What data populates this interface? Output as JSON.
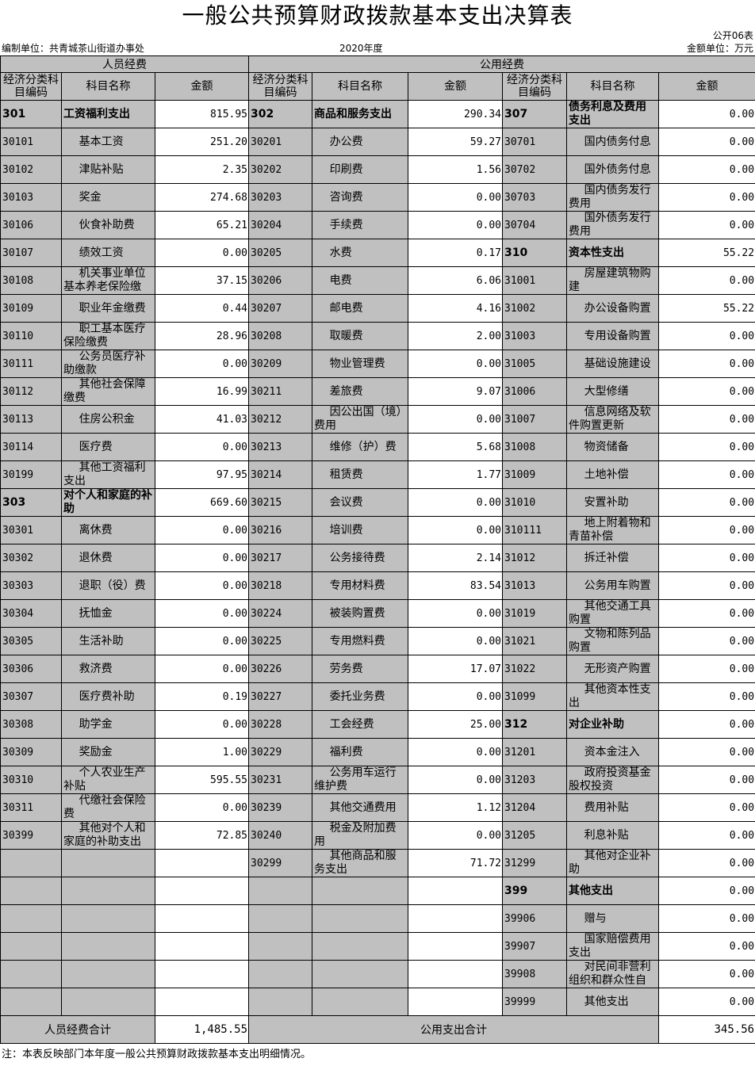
{
  "title": "一般公共预算财政拨款基本支出决算表",
  "form_no": "公开06表",
  "unit_label": "编制单位：共青城茶山街道办事处",
  "year": "2020年度",
  "currency": "金额单位：万元",
  "groups": {
    "personnel": "人员经费",
    "public": "公用经费"
  },
  "headers": {
    "code_a": "经济分类科目编码",
    "code_b": "经济分类科目编码",
    "name": "科目名称",
    "amount": "金额"
  },
  "rows": [
    [
      [
        "301",
        "工资福利支出",
        "815.95",
        1
      ],
      [
        "302",
        "商品和服务支出",
        "290.34",
        1
      ],
      [
        "307",
        "债务利息及费用支出",
        "0.00",
        1
      ]
    ],
    [
      [
        "30101",
        "基本工资",
        "251.20"
      ],
      [
        "30201",
        "办公费",
        "59.27"
      ],
      [
        "30701",
        "国内债务付息",
        "0.00"
      ]
    ],
    [
      [
        "30102",
        "津贴补贴",
        "2.35"
      ],
      [
        "30202",
        "印刷费",
        "1.56"
      ],
      [
        "30702",
        "国外债务付息",
        "0.00"
      ]
    ],
    [
      [
        "30103",
        "奖金",
        "274.68"
      ],
      [
        "30203",
        "咨询费",
        "0.00"
      ],
      [
        "30703",
        "国内债务发行费用",
        "0.00"
      ]
    ],
    [
      [
        "30106",
        "伙食补助费",
        "65.21"
      ],
      [
        "30204",
        "手续费",
        "0.00"
      ],
      [
        "30704",
        "国外债务发行费用",
        "0.00"
      ]
    ],
    [
      [
        "30107",
        "绩效工资",
        "0.00"
      ],
      [
        "30205",
        "水费",
        "0.17"
      ],
      [
        "310",
        "资本性支出",
        "55.22",
        1
      ]
    ],
    [
      [
        "30108",
        "机关事业单位基本养老保险缴",
        "37.15"
      ],
      [
        "30206",
        "电费",
        "6.06"
      ],
      [
        "31001",
        "房屋建筑物购建",
        "0.00"
      ]
    ],
    [
      [
        "30109",
        "职业年金缴费",
        "0.44"
      ],
      [
        "30207",
        "邮电费",
        "4.16"
      ],
      [
        "31002",
        "办公设备购置",
        "55.22"
      ]
    ],
    [
      [
        "30110",
        "职工基本医疗保险缴费",
        "28.96"
      ],
      [
        "30208",
        "取暖费",
        "2.00"
      ],
      [
        "31003",
        "专用设备购置",
        "0.00"
      ]
    ],
    [
      [
        "30111",
        "公务员医疗补助缴款",
        "0.00"
      ],
      [
        "30209",
        "物业管理费",
        "0.00"
      ],
      [
        "31005",
        "基础设施建设",
        "0.00"
      ]
    ],
    [
      [
        "30112",
        "其他社会保障缴费",
        "16.99"
      ],
      [
        "30211",
        "差旅费",
        "9.07"
      ],
      [
        "31006",
        "大型修缮",
        "0.00"
      ]
    ],
    [
      [
        "30113",
        "住房公积金",
        "41.03"
      ],
      [
        "30212",
        "因公出国（境）费用",
        "0.00"
      ],
      [
        "31007",
        "信息网络及软件购置更新",
        "0.00"
      ]
    ],
    [
      [
        "30114",
        "医疗费",
        "0.00"
      ],
      [
        "30213",
        "维修（护）费",
        "5.68"
      ],
      [
        "31008",
        "物资储备",
        "0.00"
      ]
    ],
    [
      [
        "30199",
        "其他工资福利支出",
        "97.95"
      ],
      [
        "30214",
        "租赁费",
        "1.77"
      ],
      [
        "31009",
        "土地补偿",
        "0.00"
      ]
    ],
    [
      [
        "303",
        "对个人和家庭的补助",
        "669.60",
        1
      ],
      [
        "30215",
        "会议费",
        "0.00"
      ],
      [
        "31010",
        "安置补助",
        "0.00"
      ]
    ],
    [
      [
        "30301",
        "离休费",
        "0.00"
      ],
      [
        "30216",
        "培训费",
        "0.00"
      ],
      [
        "310111",
        "地上附着物和青苗补偿",
        "0.00"
      ]
    ],
    [
      [
        "30302",
        "退休费",
        "0.00"
      ],
      [
        "30217",
        "公务接待费",
        "2.14"
      ],
      [
        "31012",
        "拆迁补偿",
        "0.00"
      ]
    ],
    [
      [
        "30303",
        "退职（役）费",
        "0.00"
      ],
      [
        "30218",
        "专用材料费",
        "83.54"
      ],
      [
        "31013",
        "公务用车购置",
        "0.00"
      ]
    ],
    [
      [
        "30304",
        "抚恤金",
        "0.00"
      ],
      [
        "30224",
        "被装购置费",
        "0.00"
      ],
      [
        "31019",
        "其他交通工具购置",
        "0.00"
      ]
    ],
    [
      [
        "30305",
        "生活补助",
        "0.00"
      ],
      [
        "30225",
        "专用燃料费",
        "0.00"
      ],
      [
        "31021",
        "文物和陈列品购置",
        "0.00"
      ]
    ],
    [
      [
        "30306",
        "救济费",
        "0.00"
      ],
      [
        "30226",
        "劳务费",
        "17.07"
      ],
      [
        "31022",
        "无形资产购置",
        "0.00"
      ]
    ],
    [
      [
        "30307",
        "医疗费补助",
        "0.19"
      ],
      [
        "30227",
        "委托业务费",
        "0.00"
      ],
      [
        "31099",
        "其他资本性支出",
        "0.00"
      ]
    ],
    [
      [
        "30308",
        "助学金",
        "0.00"
      ],
      [
        "30228",
        "工会经费",
        "25.00"
      ],
      [
        "312",
        "对企业补助",
        "0.00",
        1
      ]
    ],
    [
      [
        "30309",
        "奖励金",
        "1.00"
      ],
      [
        "30229",
        "福利费",
        "0.00"
      ],
      [
        "31201",
        "资本金注入",
        "0.00"
      ]
    ],
    [
      [
        "30310",
        "个人农业生产补贴",
        "595.55"
      ],
      [
        "30231",
        "公务用车运行维护费",
        "0.00"
      ],
      [
        "31203",
        "政府投资基金股权投资",
        "0.00"
      ]
    ],
    [
      [
        "30311",
        "代缴社会保险费",
        "0.00"
      ],
      [
        "30239",
        "其他交通费用",
        "1.12"
      ],
      [
        "31204",
        "费用补贴",
        "0.00"
      ]
    ],
    [
      [
        "30399",
        "其他对个人和家庭的补助支出",
        "72.85"
      ],
      [
        "30240",
        "税金及附加费用",
        "0.00"
      ],
      [
        "31205",
        "利息补贴",
        "0.00"
      ]
    ],
    [
      [
        "",
        "",
        ""
      ],
      [
        "30299",
        "其他商品和服务支出",
        "71.72"
      ],
      [
        "31299",
        "其他对企业补助",
        "0.00"
      ]
    ],
    [
      [
        "",
        "",
        ""
      ],
      [
        "",
        "",
        ""
      ],
      [
        "399",
        "其他支出",
        "0.00",
        1
      ]
    ],
    [
      [
        "",
        "",
        ""
      ],
      [
        "",
        "",
        ""
      ],
      [
        "39906",
        "赠与",
        "0.00"
      ]
    ],
    [
      [
        "",
        "",
        ""
      ],
      [
        "",
        "",
        ""
      ],
      [
        "39907",
        "国家赔偿费用支出",
        "0.00"
      ]
    ],
    [
      [
        "",
        "",
        ""
      ],
      [
        "",
        "",
        ""
      ],
      [
        "39908",
        "对民间非营利组织和群众性自",
        "0.00"
      ]
    ],
    [
      [
        "",
        "",
        ""
      ],
      [
        "",
        "",
        ""
      ],
      [
        "39999",
        "其他支出",
        "0.00"
      ]
    ]
  ],
  "totals": {
    "personnel_label": "人员经费合计",
    "personnel_amount": "1,485.55",
    "public_label": "公用支出合计",
    "public_amount": "345.56"
  },
  "note": "注：本表反映部门本年度一般公共预算财政拨款基本支出明细情况。"
}
